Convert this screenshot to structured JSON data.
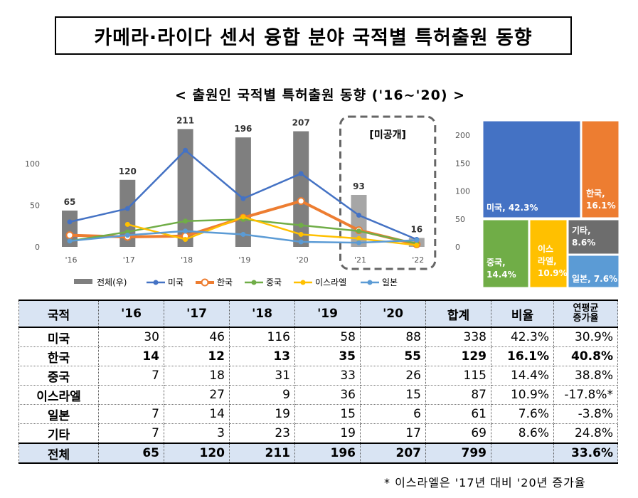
{
  "main_title": "카메라·라이다 센서 융합 분야 국적별 특허출원 동향",
  "chart_title": "< 출원인 국적별 특허출원 동향 ('16~'20) >",
  "unpublished_label": "[미공개]",
  "chart_data": {
    "type": "bar",
    "categories": [
      "'16",
      "'17",
      "'18",
      "'19",
      "'20",
      "'21",
      "'22"
    ],
    "left_axis": {
      "ylim": [
        0,
        125
      ],
      "ticks": [
        0,
        50,
        100
      ]
    },
    "right_axis": {
      "ylim": [
        0,
        250
      ],
      "ticks": [
        0,
        50,
        100,
        150,
        200
      ]
    },
    "bar_series": {
      "name": "전체(우)",
      "values": [
        65,
        120,
        211,
        196,
        207,
        93,
        16
      ],
      "color": "#7f7f7f",
      "unpublished_color": "#a6a6a6"
    },
    "line_series": [
      {
        "name": "미국",
        "values": [
          30,
          46,
          116,
          58,
          88,
          38,
          9
        ],
        "color": "#4472c4"
      },
      {
        "name": "한국",
        "values": [
          14,
          12,
          13,
          35,
          55,
          20,
          3
        ],
        "color": "#ed7d31"
      },
      {
        "name": "중국",
        "values": [
          7,
          18,
          31,
          33,
          26,
          19,
          4
        ],
        "color": "#70ad47"
      },
      {
        "name": "이스라엘",
        "values": [
          null,
          27,
          9,
          36,
          15,
          10,
          2
        ],
        "color": "#ffc000"
      },
      {
        "name": "일본",
        "values": [
          7,
          14,
          19,
          15,
          6,
          5,
          8
        ],
        "color": "#5b9bd5"
      }
    ]
  },
  "treemap": [
    {
      "label": "미국, 42.3%",
      "color": "#4472c4"
    },
    {
      "label": "한국, 16.1%",
      "color": "#ed7d31"
    },
    {
      "label": "중국, 14.4%",
      "color": "#70ad47"
    },
    {
      "label": "이스라엘, 10.9%",
      "color": "#ffc000"
    },
    {
      "label": "기타, 8.6%",
      "color": "#6d6d6d"
    },
    {
      "label": "일본, 7.6%",
      "color": "#5b9bd5"
    }
  ],
  "table": {
    "headers": [
      "국적",
      "'16",
      "'17",
      "'18",
      "'19",
      "'20",
      "합계",
      "비율"
    ],
    "growth_header": [
      "연평균",
      "증가율"
    ],
    "rows": [
      {
        "name": "미국",
        "cells": [
          "30",
          "46",
          "116",
          "58",
          "88",
          "338",
          "42.3%",
          "30.9%"
        ]
      },
      {
        "name": "한국",
        "cells": [
          "14",
          "12",
          "13",
          "35",
          "55",
          "129",
          "16.1%",
          "40.8%"
        ]
      },
      {
        "name": "중국",
        "cells": [
          "7",
          "18",
          "31",
          "33",
          "26",
          "115",
          "14.4%",
          "38.8%"
        ]
      },
      {
        "name": "이스라엘",
        "cells": [
          "",
          "27",
          "9",
          "36",
          "15",
          "87",
          "10.9%",
          "-17.8%*"
        ]
      },
      {
        "name": "일본",
        "cells": [
          "7",
          "14",
          "19",
          "15",
          "6",
          "61",
          "7.6%",
          "-3.8%"
        ]
      },
      {
        "name": "기타",
        "cells": [
          "7",
          "3",
          "23",
          "19",
          "17",
          "69",
          "8.6%",
          "24.8%"
        ]
      },
      {
        "name": "전체",
        "cells": [
          "65",
          "120",
          "211",
          "196",
          "207",
          "799",
          "",
          "33.6%"
        ]
      }
    ]
  },
  "footnote": "* 이스라엘은 '17년 대비 '20년 증가율"
}
